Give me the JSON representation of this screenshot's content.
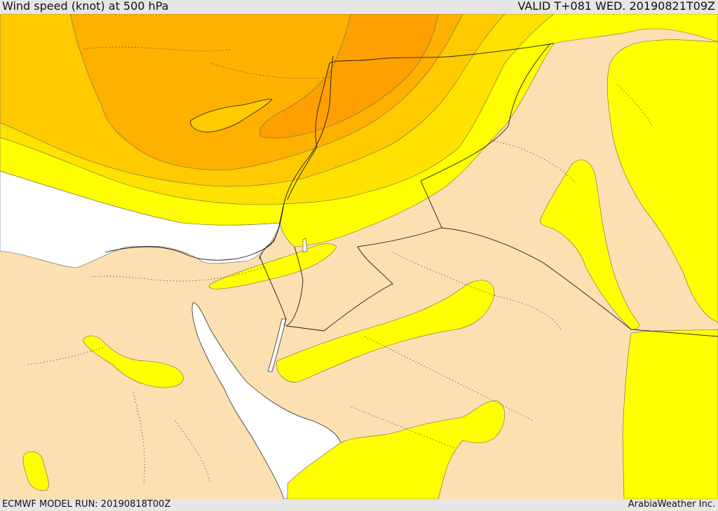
{
  "header": {
    "title": "Wind speed (knot) at 500 hPa",
    "valid": "VALID T+081 WED. 20190821T09Z"
  },
  "footer": {
    "model_run": "ECMWF MODEL RUN: 20190818T00Z",
    "credit": "ArabiaWeather Inc."
  },
  "palette": {
    "land_calm": "#fde0b2",
    "sea_white": "#ffffff",
    "band_1": "#ffff00",
    "band_2": "#ffe200",
    "band_3": "#ffcb00",
    "band_4": "#ffb100",
    "band_5": "#ff9f00",
    "border": "#1a1a1a"
  }
}
